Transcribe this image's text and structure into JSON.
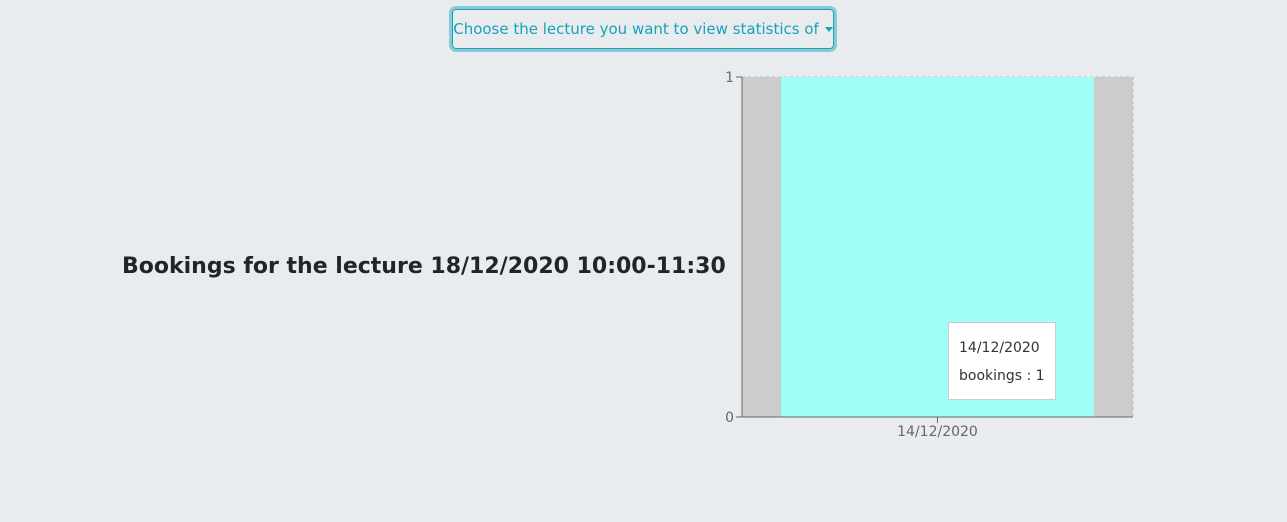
{
  "dropdown": {
    "label": "Choose the lecture you want to view statistics of"
  },
  "heading": "Bookings for the lecture 18/12/2020 10:00-11:30",
  "colors": {
    "accent": "#17a2b8",
    "bar": "#9ffff7",
    "cursor_band": "#cccccc"
  },
  "chart_data": {
    "type": "bar",
    "categories": [
      "14/12/2020"
    ],
    "series": [
      {
        "values": [
          1
        ]
      }
    ],
    "ylim": [
      0,
      1
    ],
    "yticks": [
      0,
      1
    ],
    "grid": false,
    "tooltip": {
      "label": "14/12/2020",
      "text": "bookings : 1"
    }
  }
}
